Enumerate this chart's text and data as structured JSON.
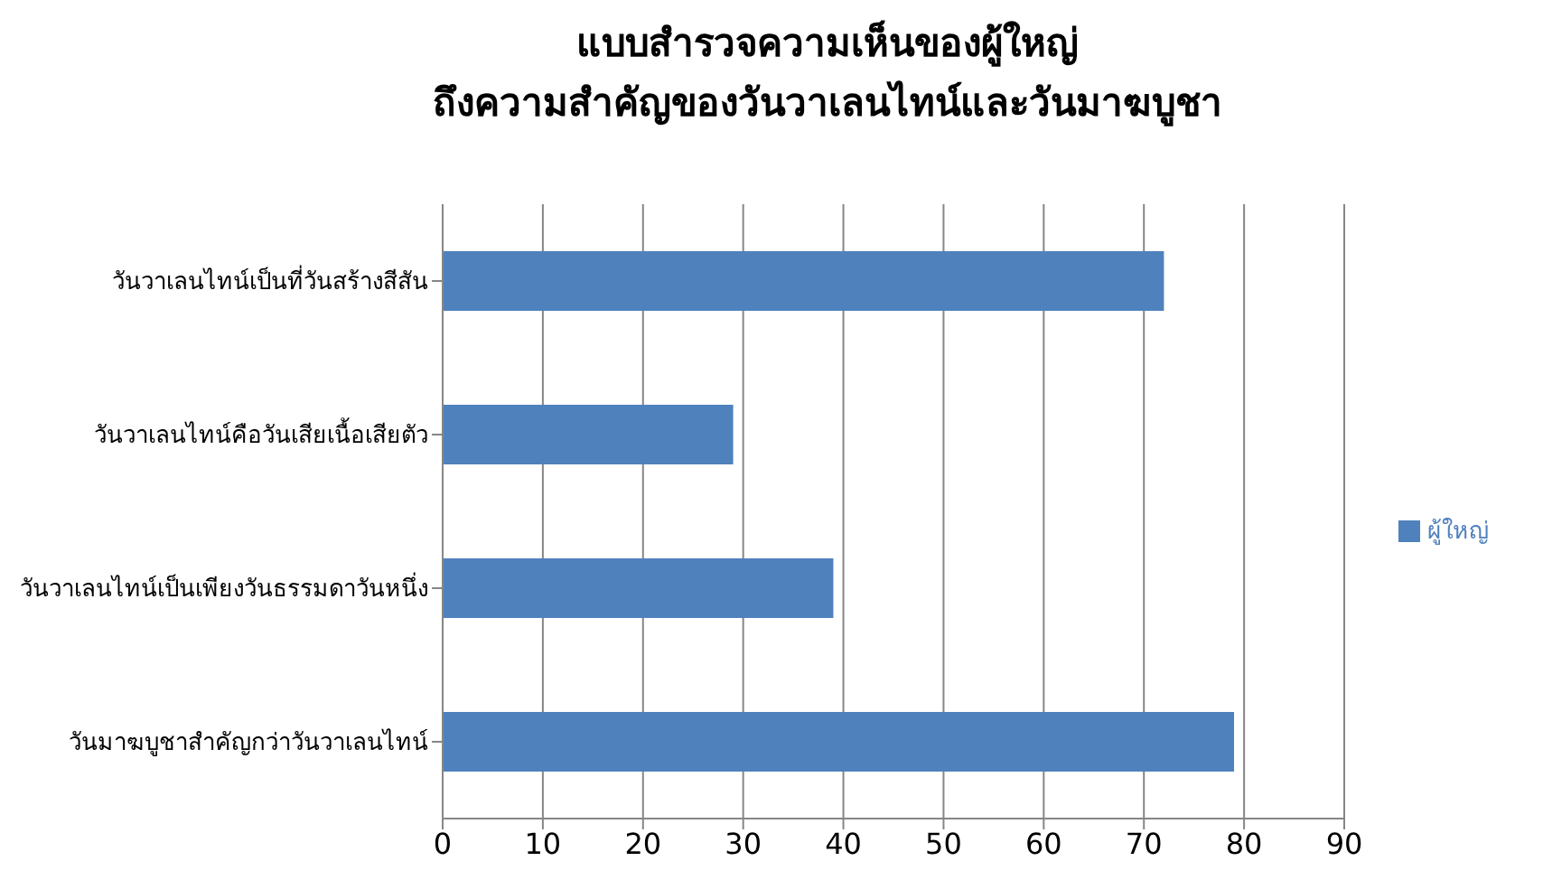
{
  "chart_data": {
    "type": "bar",
    "orientation": "horizontal",
    "title": "แบบสำรวจความเห็นของผู้ใหญ่\nถึงความสำคัญของวันวาเลนไทน์และวันมาฆบูชา",
    "categories": [
      "วันวาเลนไทน์เป็นที่วันสร้างสีสัน",
      "วันวาเลนไทน์คือวันเสียเนื้อเสียตัว",
      "วันวาเลนไทน์เป็นเพียงวันธรรมดาวันหนึ่ง",
      "วันมาฆบูชาสำคัญกว่าวันวาเลนไทน์"
    ],
    "series": [
      {
        "name": "ผู้ใหญ่",
        "color": "#4f81bd",
        "values": [
          72,
          29,
          39,
          79
        ]
      }
    ],
    "xlim": [
      0,
      90
    ],
    "xticks": [
      0,
      10,
      20,
      30,
      40,
      50,
      60,
      70,
      80,
      90
    ],
    "grid": "x",
    "legend": "right"
  }
}
